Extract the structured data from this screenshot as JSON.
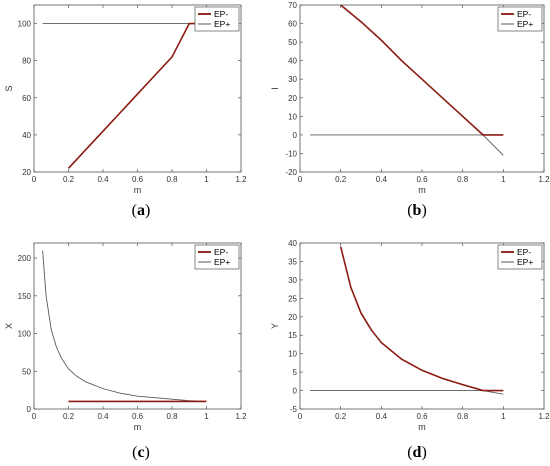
{
  "legend": {
    "entries": [
      "EP-",
      "EP+"
    ],
    "colors": {
      "EP-": "#8b1a10",
      "EP+": "#5a5a5a"
    },
    "placement": "top-right"
  },
  "chart_data": [
    {
      "type": "line",
      "caption": "(a)",
      "xlabel": "m",
      "ylabel": "S",
      "xlim": [
        0,
        1.2
      ],
      "ylim": [
        20,
        110
      ],
      "xticks": [
        "0",
        "0.2",
        "0.4",
        "0.6",
        "0.8",
        "1",
        "1.2"
      ],
      "yticks": [
        "20",
        "40",
        "60",
        "80",
        "100"
      ],
      "ytick_values": [
        20,
        40,
        60,
        80,
        100
      ],
      "series": [
        {
          "name": "EP-",
          "x": [
            0.2,
            0.3,
            0.4,
            0.5,
            0.6,
            0.7,
            0.8,
            0.9,
            1.0
          ],
          "y": [
            22,
            32,
            42,
            52,
            62,
            72,
            82,
            100,
            100
          ]
        },
        {
          "name": "EP+",
          "x": [
            0.05,
            1.0
          ],
          "y": [
            100,
            100
          ]
        }
      ]
    },
    {
      "type": "line",
      "caption": "(b)",
      "xlabel": "m",
      "ylabel": "I",
      "xlim": [
        0,
        1.2
      ],
      "ylim": [
        -20,
        70
      ],
      "xticks": [
        "0",
        "0.2",
        "0.4",
        "0.6",
        "0.8",
        "1",
        "1.2"
      ],
      "yticks": [
        "-20",
        "-10",
        "0",
        "10",
        "20",
        "30",
        "40",
        "50",
        "60",
        "70"
      ],
      "ytick_values": [
        -20,
        -10,
        0,
        10,
        20,
        30,
        40,
        50,
        60,
        70
      ],
      "series": [
        {
          "name": "EP-",
          "x": [
            0.2,
            0.3,
            0.4,
            0.5,
            0.6,
            0.7,
            0.8,
            0.9,
            1.0
          ],
          "y": [
            70,
            61,
            51,
            40,
            30,
            20,
            10,
            0,
            0
          ]
        },
        {
          "name": "EP+",
          "x": [
            0.05,
            0.9,
            1.0
          ],
          "y": [
            0,
            0,
            -11
          ]
        }
      ]
    },
    {
      "type": "line",
      "caption": "(c)",
      "xlabel": "m",
      "ylabel": "X",
      "xlim": [
        0,
        1.2
      ],
      "ylim": [
        0,
        220
      ],
      "xticks": [
        "0",
        "0.2",
        "0.4",
        "0.6",
        "0.8",
        "1",
        "1.2"
      ],
      "yticks": [
        "0",
        "50",
        "100",
        "150",
        "200"
      ],
      "ytick_values": [
        0,
        50,
        100,
        150,
        200
      ],
      "series": [
        {
          "name": "EP-",
          "x": [
            0.2,
            1.0
          ],
          "y": [
            10,
            10
          ]
        },
        {
          "name": "EP+",
          "x": [
            0.05,
            0.07,
            0.1,
            0.13,
            0.16,
            0.2,
            0.25,
            0.3,
            0.4,
            0.5,
            0.6,
            0.7,
            0.8,
            0.9,
            1.0
          ],
          "y": [
            210,
            150,
            105,
            82,
            67,
            53,
            43,
            36,
            27,
            21,
            17,
            15,
            13,
            11,
            10
          ]
        }
      ]
    },
    {
      "type": "line",
      "caption": "(d)",
      "xlabel": "m",
      "ylabel": "Y",
      "xlim": [
        0,
        1.2
      ],
      "ylim": [
        -5,
        40
      ],
      "xticks": [
        "0",
        "0.2",
        "0.4",
        "0.6",
        "0.8",
        "1",
        "1.2"
      ],
      "yticks": [
        "-5",
        "0",
        "5",
        "10",
        "15",
        "20",
        "25",
        "30",
        "35",
        "40"
      ],
      "ytick_values": [
        -5,
        0,
        5,
        10,
        15,
        20,
        25,
        30,
        35,
        40
      ],
      "series": [
        {
          "name": "EP-",
          "x": [
            0.2,
            0.25,
            0.3,
            0.35,
            0.4,
            0.5,
            0.6,
            0.7,
            0.8,
            0.9,
            1.0
          ],
          "y": [
            39,
            28,
            21,
            16.5,
            13,
            8.5,
            5.5,
            3.3,
            1.6,
            0,
            0
          ]
        },
        {
          "name": "EP+",
          "x": [
            0.05,
            0.9,
            1.0
          ],
          "y": [
            0,
            0,
            -1
          ]
        }
      ]
    }
  ]
}
